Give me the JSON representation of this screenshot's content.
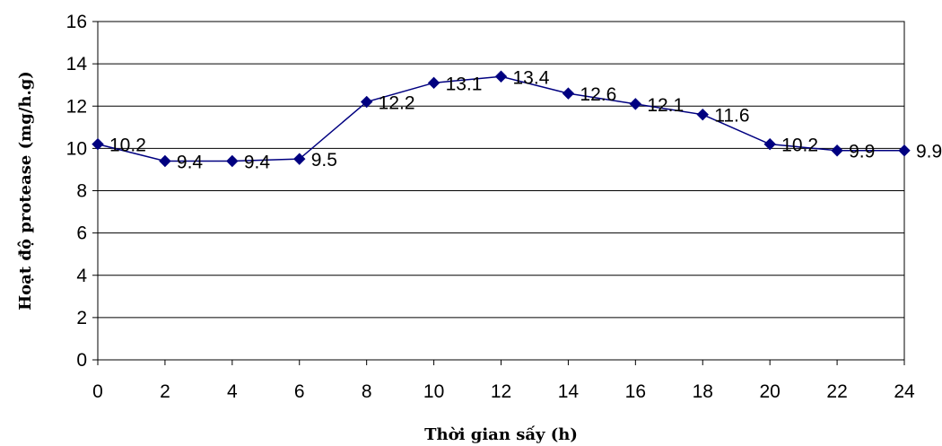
{
  "chart_data": {
    "type": "line",
    "xlabel": "Thời gian sấy (h)",
    "ylabel": "Hoạt độ protease (mg/h.g)",
    "xlim": [
      0,
      24
    ],
    "ylim": [
      0,
      16
    ],
    "x_ticks": [
      "0",
      "2",
      "4",
      "6",
      "8",
      "10",
      "12",
      "14",
      "16",
      "18",
      "20",
      "22",
      "24"
    ],
    "y_ticks": [
      "0",
      "2",
      "4",
      "6",
      "8",
      "10",
      "12",
      "14",
      "16"
    ],
    "grid": true,
    "series": [
      {
        "x": [
          0,
          2,
          4,
          6,
          8,
          10,
          12,
          14,
          16,
          18,
          20,
          22,
          24
        ],
        "values": [
          10.2,
          9.4,
          9.4,
          9.5,
          12.2,
          13.1,
          13.4,
          12.6,
          12.1,
          11.6,
          10.2,
          9.9,
          9.9
        ],
        "labels": [
          "10.2",
          "9.4",
          "9.4",
          "9.5",
          "12.2",
          "13.1",
          "13.4",
          "12.6",
          "12.1",
          "11.6",
          "10.2",
          "9.9",
          "9.9"
        ],
        "color": "#000080",
        "marker": "diamond"
      }
    ]
  }
}
